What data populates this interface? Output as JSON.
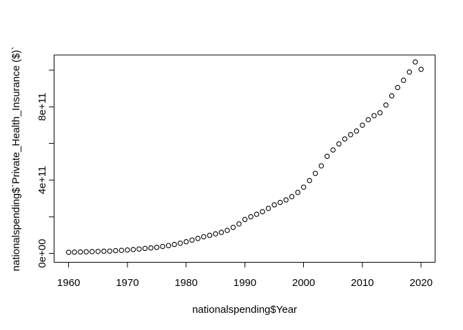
{
  "figure": {
    "background_color": "#ffffff",
    "foreground_color": "#000000"
  },
  "chart_data": {
    "type": "scatter",
    "title": "",
    "xlabel": "nationalspending$Year",
    "ylabel": "nationalspending$`Private_Health_Insurance ($)`",
    "marker": "open-circle",
    "marker_color": "#000000",
    "grid": false,
    "legend": "none",
    "xlim": [
      1957.5,
      2022.4
    ],
    "ylim": [
      -49000000000,
      1083000000000
    ],
    "x_tick_values": [
      1960,
      1970,
      1980,
      1990,
      2000,
      2010,
      2020
    ],
    "x_tick_labels": [
      "1960",
      "1970",
      "1980",
      "1990",
      "2000",
      "2010",
      "2020"
    ],
    "y_tick_values": [
      0,
      200000000000,
      400000000000,
      600000000000,
      800000000000,
      1000000000000
    ],
    "y_tick_labels": [
      "0e+00",
      "",
      "4e+11",
      "",
      "8e+11",
      ""
    ],
    "x": [
      1960,
      1961,
      1962,
      1963,
      1964,
      1965,
      1966,
      1967,
      1968,
      1969,
      1970,
      1971,
      1972,
      1973,
      1974,
      1975,
      1976,
      1977,
      1978,
      1979,
      1980,
      1981,
      1982,
      1983,
      1984,
      1985,
      1986,
      1987,
      1988,
      1989,
      1990,
      1991,
      1992,
      1993,
      1994,
      1995,
      1996,
      1997,
      1998,
      1999,
      2000,
      2001,
      2002,
      2003,
      2004,
      2005,
      2006,
      2007,
      2008,
      2009,
      2010,
      2011,
      2012,
      2013,
      2014,
      2015,
      2016,
      2017,
      2018,
      2019,
      2020
    ],
    "y": [
      6000000000.0,
      7000000000.0,
      8000000000.0,
      9000000000.0,
      10000000000.0,
      11000000000.0,
      12000000000.0,
      13000000000.0,
      15000000000.0,
      17000000000.0,
      19000000000.0,
      21000000000.0,
      24000000000.0,
      27000000000.0,
      30000000000.0,
      33000000000.0,
      38000000000.0,
      43000000000.0,
      49000000000.0,
      56000000000.0,
      64000000000.0,
      73000000000.0,
      82000000000.0,
      91000000000.0,
      99000000000.0,
      107000000000.0,
      115000000000.0,
      126000000000.0,
      142000000000.0,
      161000000000.0,
      185000000000.0,
      200000000000.0,
      214000000000.0,
      228000000000.0,
      246000000000.0,
      265000000000.0,
      278000000000.0,
      292000000000.0,
      310000000000.0,
      333000000000.0,
      362000000000.0,
      398000000000.0,
      437000000000.0,
      478000000000.0,
      530000000000.0,
      565000000000.0,
      598000000000.0,
      625000000000.0,
      648000000000.0,
      668000000000.0,
      700000000000.0,
      730000000000.0,
      752000000000.0,
      768000000000.0,
      810000000000.0,
      860000000000.0,
      905000000000.0,
      945000000000.0,
      990000000000.0,
      1045000000000.0,
      1005000000000.0
    ]
  }
}
